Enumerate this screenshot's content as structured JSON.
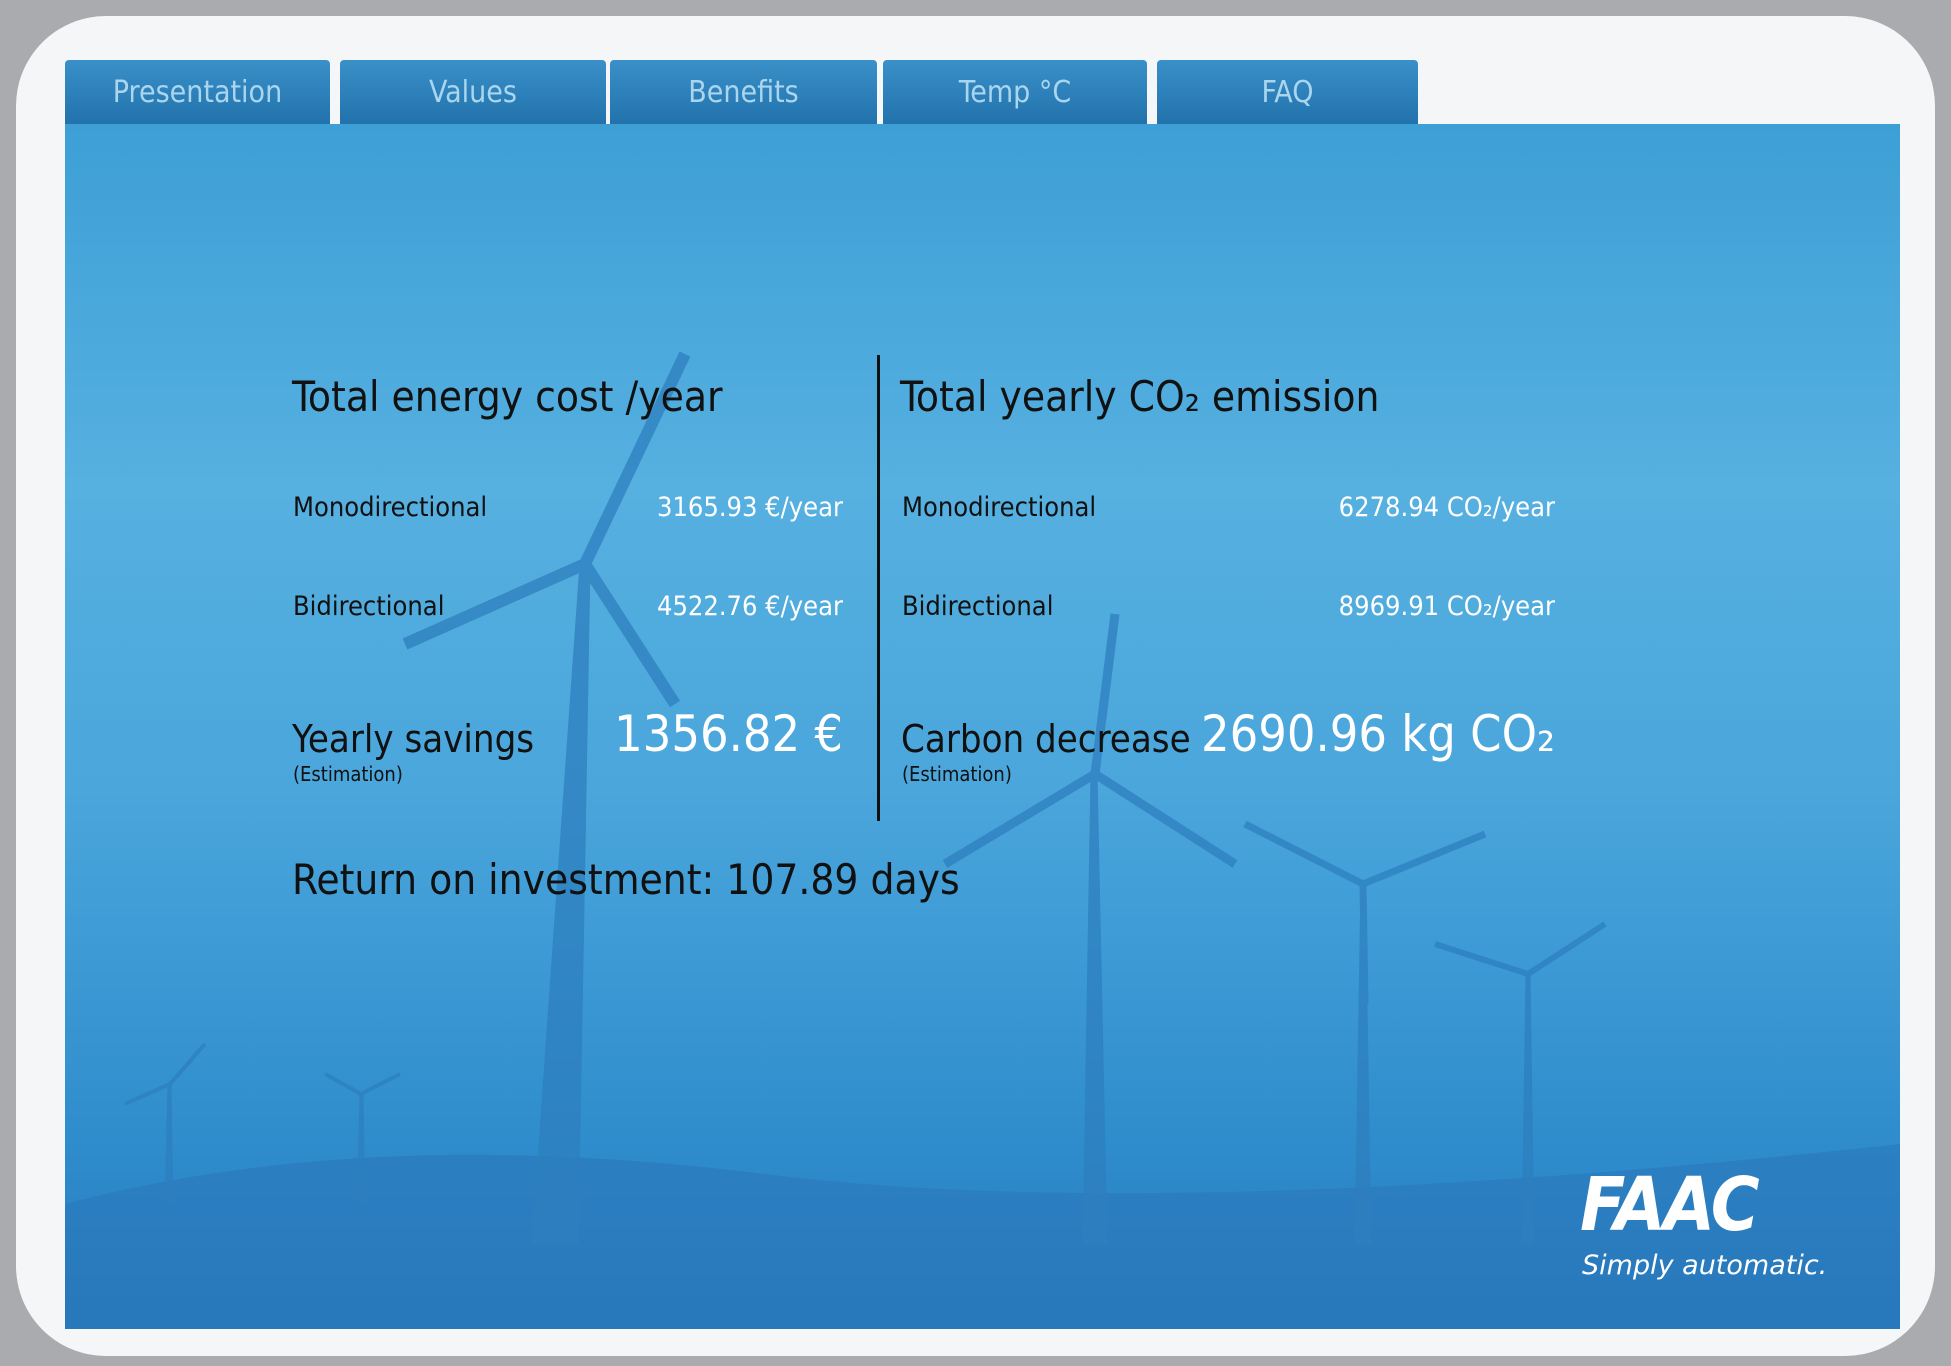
{
  "tabs": [
    "Presentation",
    "Values",
    "Benefits",
    "Temp °C",
    "FAQ"
  ],
  "energy_cost": {
    "title": "Total energy cost /year",
    "rows": [
      {
        "label": "Monodirectional",
        "value": "3165.93",
        "unit": "€/year"
      },
      {
        "label": "Bidirectional",
        "value": "4522.76",
        "unit": "€/year"
      }
    ],
    "summary": {
      "label": "Yearly savings",
      "note": "(Estimation)",
      "value": "1356.82",
      "unit": "€"
    }
  },
  "emission": {
    "title": "Total yearly CO₂ emission",
    "rows": [
      {
        "label": "Monodirectional",
        "value": "6278.94",
        "unit": "CO₂/year"
      },
      {
        "label": "Bidirectional",
        "value": "8969.91",
        "unit": "CO₂/year"
      }
    ],
    "summary": {
      "label": "Carbon decrease",
      "note": "(Estimation)",
      "value": "2690.96",
      "unit": "kg CO₂"
    }
  },
  "return_on_investment": "Return on investment: 107.89 days",
  "logo": {
    "brand": "FAAC",
    "slogan": "Simply automatic."
  }
}
